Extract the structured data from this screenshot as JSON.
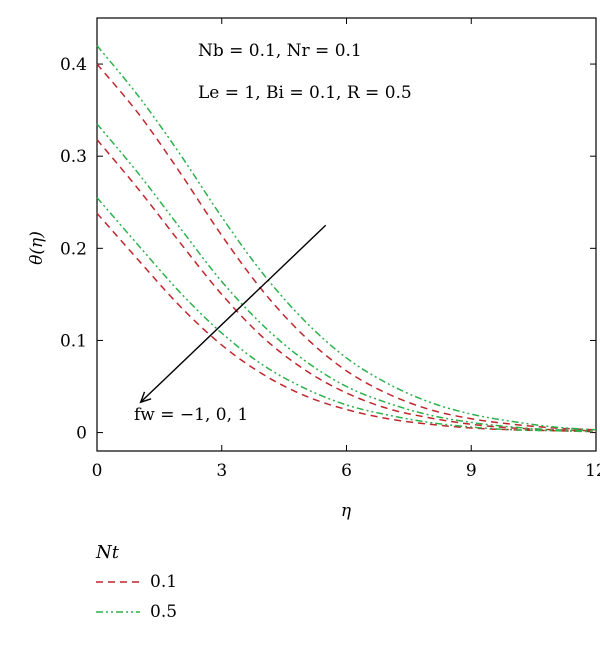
{
  "chart_data": {
    "type": "line",
    "xlabel": "η",
    "ylabel": "θ(η)",
    "xlim": [
      0,
      12
    ],
    "ylim": [
      -0.02,
      0.45
    ],
    "xticks": [
      "0",
      "3",
      "6",
      "9",
      "12"
    ],
    "yticks": [
      "0",
      "0.1",
      "0.2",
      "0.3",
      "0.4"
    ],
    "legend_title": "Nt",
    "legend_position": "below",
    "colors": {
      "nt_0_1": "#c0272d",
      "nt_0_5": "#2bb24c"
    },
    "annotations": {
      "line1": "Nb = 0.1, Nr = 0.1",
      "line2": "Le = 1, Bi = 0.1, R = 0.5",
      "arrow_label": "fw = −1, 0, 1"
    },
    "arrow": {
      "from": [
        5.5,
        0.225
      ],
      "to": [
        1.05,
        0.033
      ]
    },
    "x": [
      0,
      1,
      2,
      3,
      4,
      5,
      6,
      7,
      8,
      9,
      10,
      11,
      12
    ],
    "series": [
      {
        "legend": "0.1",
        "dash": "dashed",
        "fw": "-1",
        "values": [
          0.4,
          0.346,
          0.282,
          0.214,
          0.153,
          0.104,
          0.067,
          0.042,
          0.025,
          0.015,
          0.009,
          0.005,
          0.003
        ]
      },
      {
        "legend": "0.5",
        "dash": "dashdotdot",
        "fw": "-1",
        "values": [
          0.42,
          0.365,
          0.302,
          0.234,
          0.172,
          0.121,
          0.081,
          0.053,
          0.033,
          0.02,
          0.012,
          0.006,
          0.003
        ]
      },
      {
        "legend": "0.1",
        "dash": "dashed",
        "fw": "0",
        "values": [
          0.318,
          0.264,
          0.206,
          0.15,
          0.103,
          0.068,
          0.043,
          0.026,
          0.016,
          0.009,
          0.005,
          0.003,
          0.002
        ]
      },
      {
        "legend": "0.5",
        "dash": "dashdotdot",
        "fw": "0",
        "values": [
          0.335,
          0.281,
          0.222,
          0.164,
          0.116,
          0.078,
          0.05,
          0.032,
          0.019,
          0.011,
          0.006,
          0.003,
          0.002
        ]
      },
      {
        "legend": "0.1",
        "dash": "dashed",
        "fw": "1",
        "values": [
          0.238,
          0.187,
          0.137,
          0.095,
          0.063,
          0.04,
          0.025,
          0.015,
          0.009,
          0.005,
          0.003,
          0.002,
          0.001
        ]
      },
      {
        "legend": "0.5",
        "dash": "dashdotdot",
        "fw": "1",
        "values": [
          0.255,
          0.203,
          0.152,
          0.108,
          0.073,
          0.048,
          0.03,
          0.019,
          0.011,
          0.006,
          0.003,
          0.002,
          0.001
        ]
      }
    ]
  }
}
